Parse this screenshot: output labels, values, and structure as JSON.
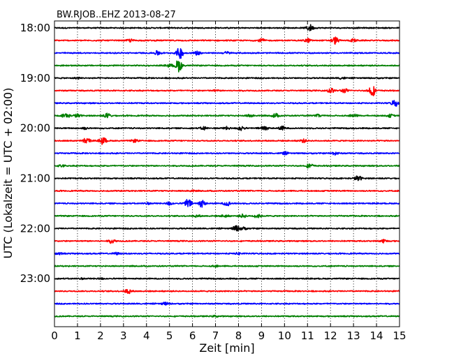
{
  "chart_data": {
    "type": "line",
    "title": "BW.RJOB..EHZ 2013-08-27",
    "xlabel": "Zeit  [min]",
    "ylabel": "UTC (Lokalzeit = UTC + 02:00)",
    "xlim": [
      0,
      15
    ],
    "x_ticks": [
      "0",
      "1",
      "2",
      "3",
      "4",
      "5",
      "6",
      "7",
      "8",
      "9",
      "10",
      "11",
      "12",
      "13",
      "14",
      "15"
    ],
    "y_tick_labels": [
      "18:00",
      "19:00",
      "20:00",
      "21:00",
      "22:00",
      "23:00"
    ],
    "grid": true,
    "colors": [
      "#000000",
      "#ff0000",
      "#0000ff",
      "#007f00"
    ],
    "traces": [
      {
        "start": "18:00",
        "events": [
          [
            11.1,
            0.5
          ]
        ]
      },
      {
        "start": "18:15",
        "events": [
          [
            3.3,
            0.2
          ],
          [
            9.0,
            0.25
          ],
          [
            11.0,
            0.3
          ],
          [
            12.2,
            0.55
          ],
          [
            13.0,
            0.2
          ]
        ]
      },
      {
        "start": "18:30",
        "events": [
          [
            4.5,
            0.35
          ],
          [
            5.45,
            0.85
          ],
          [
            6.2,
            0.3
          ],
          [
            7.5,
            0.2
          ]
        ]
      },
      {
        "start": "18:45",
        "events": [
          [
            5.4,
            0.95
          ],
          [
            5.0,
            0.2
          ]
        ]
      },
      {
        "start": "19:00",
        "events": [
          [
            1.0,
            0.1
          ],
          [
            12.5,
            0.15
          ]
        ]
      },
      {
        "start": "19:15",
        "events": [
          [
            7.0,
            0.1
          ],
          [
            12.0,
            0.4
          ],
          [
            12.6,
            0.3
          ],
          [
            13.8,
            0.9
          ]
        ]
      },
      {
        "start": "19:30",
        "events": [
          [
            14.8,
            0.55
          ]
        ]
      },
      {
        "start": "19:45",
        "events": [
          [
            0.5,
            0.45
          ],
          [
            1.0,
            0.25
          ],
          [
            2.3,
            0.35
          ],
          [
            8.5,
            0.2
          ],
          [
            9.6,
            0.3
          ],
          [
            11.5,
            0.2
          ],
          [
            13.0,
            0.25
          ],
          [
            14.6,
            0.2
          ]
        ]
      },
      {
        "start": "20:00",
        "events": [
          [
            1.3,
            0.15
          ],
          [
            6.5,
            0.25
          ],
          [
            7.5,
            0.2
          ],
          [
            8.1,
            0.35
          ],
          [
            9.1,
            0.45
          ],
          [
            9.9,
            0.3
          ]
        ]
      },
      {
        "start": "20:15",
        "events": [
          [
            1.4,
            0.5
          ],
          [
            2.1,
            0.55
          ],
          [
            3.5,
            0.2
          ],
          [
            10.8,
            0.25
          ]
        ]
      },
      {
        "start": "20:30",
        "events": [
          [
            10.0,
            0.2
          ],
          [
            12.2,
            0.25
          ]
        ]
      },
      {
        "start": "20:45",
        "events": [
          [
            11.1,
            0.35
          ],
          [
            0.3,
            0.15
          ]
        ]
      },
      {
        "start": "21:00",
        "events": [
          [
            13.2,
            0.4
          ]
        ]
      },
      {
        "start": "21:15",
        "events": [
          [
            6.0,
            0.1
          ]
        ]
      },
      {
        "start": "21:30",
        "events": [
          [
            5.0,
            0.25
          ],
          [
            5.8,
            0.7
          ],
          [
            6.4,
            0.55
          ],
          [
            7.5,
            0.35
          ],
          [
            4.0,
            0.15
          ]
        ]
      },
      {
        "start": "21:45",
        "events": [
          [
            7.4,
            0.2
          ],
          [
            8.2,
            0.25
          ],
          [
            8.8,
            0.3
          ],
          [
            6.2,
            0.15
          ]
        ]
      },
      {
        "start": "22:00",
        "events": [
          [
            7.9,
            0.45
          ],
          [
            8.2,
            0.2
          ]
        ]
      },
      {
        "start": "22:15",
        "events": [
          [
            2.5,
            0.3
          ],
          [
            14.3,
            0.25
          ]
        ]
      },
      {
        "start": "22:30",
        "events": [
          [
            0.2,
            0.15
          ],
          [
            2.7,
            0.15
          ],
          [
            8.0,
            0.15
          ]
        ]
      },
      {
        "start": "22:45",
        "events": [
          [
            7.0,
            0.1
          ]
        ]
      },
      {
        "start": "23:00",
        "events": [
          [
            2.0,
            0.1
          ],
          [
            1.1,
            0.1
          ]
        ]
      },
      {
        "start": "23:15",
        "events": [
          [
            3.2,
            0.35
          ]
        ]
      },
      {
        "start": "23:30",
        "events": [
          [
            4.8,
            0.2
          ]
        ]
      },
      {
        "start": "23:45",
        "events": [
          [
            7.0,
            0.1
          ]
        ]
      }
    ]
  }
}
